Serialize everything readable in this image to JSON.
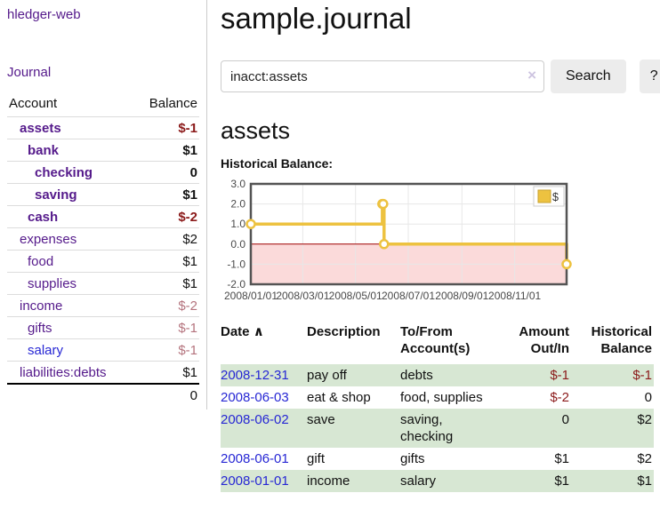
{
  "colors": {
    "link_purple": "#551a8b",
    "link_blue": "#2727d4",
    "neg_dark": "#8b1a1a",
    "neg_light": "#b4737d",
    "row_green": "#d7e7d3",
    "button_bg": "#ececec",
    "border_light": "#dcdcdc",
    "divider": "#cccccc",
    "input_border": "#cccccc",
    "clear_icon": "#cdc4e0"
  },
  "brand": {
    "title": "hledger-web"
  },
  "nav": {
    "journal": "Journal"
  },
  "sidebar": {
    "col_account": "Account",
    "col_balance": "Balance",
    "rows": [
      {
        "label": "assets",
        "balance": "$-1",
        "label_class": "d1 cur",
        "bal_class": "cur neg"
      },
      {
        "label": "bank",
        "balance": "$1",
        "label_class": "d2 cur",
        "bal_class": "cur"
      },
      {
        "label": "checking",
        "balance": "0",
        "label_class": "d3 cur",
        "bal_class": "cur"
      },
      {
        "label": "saving",
        "balance": "$1",
        "label_class": "d3 cur",
        "bal_class": "cur"
      },
      {
        "label": "cash",
        "balance": "$-2",
        "label_class": "d2 cur",
        "bal_class": "cur neg"
      },
      {
        "label": "expenses",
        "balance": "$2",
        "label_class": "d1",
        "bal_class": ""
      },
      {
        "label": "food",
        "balance": "$1",
        "label_class": "d2",
        "bal_class": ""
      },
      {
        "label": "supplies",
        "balance": "$1",
        "label_class": "d2",
        "bal_class": ""
      },
      {
        "label": "income",
        "balance": "$-2",
        "label_class": "d1",
        "bal_class": "negl"
      },
      {
        "label": "gifts",
        "balance": "$-1",
        "label_class": "d2",
        "bal_class": "negl"
      },
      {
        "label": "salary",
        "balance": "$-1",
        "label_class": "d2 alt",
        "bal_class": "negl"
      },
      {
        "label": "liabilities:debts",
        "balance": "$1",
        "label_class": "d1",
        "bal_class": ""
      }
    ],
    "total": "0"
  },
  "main": {
    "title": "sample.journal",
    "search": {
      "value": "inacct:assets",
      "clear_icon": "×",
      "search_label": "Search",
      "help_label": "?"
    },
    "account_title": "assets",
    "chart_title": "Historical Balance:"
  },
  "chart_data": {
    "type": "line",
    "step": true,
    "title": "Historical Balance",
    "legend": "$",
    "x_range": [
      "2008-01-01",
      "2008-12-31"
    ],
    "ylim": [
      -2,
      3
    ],
    "y_ticks": [
      "3.0",
      "2.0",
      "1.0",
      "0.0",
      "-1.0",
      "-2.0"
    ],
    "x_ticks": [
      "2008/01/01",
      "2008/03/01",
      "2008/05/01",
      "2008/07/01",
      "2008/09/01",
      "2008/11/01"
    ],
    "series": [
      {
        "name": "$",
        "color": "#edc240",
        "points": [
          [
            "2008-01-01",
            1
          ],
          [
            "2008-06-01",
            2
          ],
          [
            "2008-06-02",
            2
          ],
          [
            "2008-06-03",
            0
          ],
          [
            "2008-12-31",
            -1
          ]
        ]
      }
    ],
    "negative_fill": "#fbdada",
    "zero_line_color": "#a40000",
    "grid": true,
    "legend_position": "top-right"
  },
  "register": {
    "headers": {
      "date": "Date",
      "sort_icon": "∧",
      "description": "Description",
      "accounts": "To/From Account(s)",
      "amount": "Amount Out/In",
      "balance": "Historical Balance"
    },
    "rows": [
      {
        "date": "2008-12-31",
        "description": "pay off",
        "accounts": "debts",
        "amount": "$-1",
        "amount_class": "neg",
        "balance": "$-1",
        "balance_class": "neg"
      },
      {
        "date": "2008-06-03",
        "description": "eat & shop",
        "accounts": "food, supplies",
        "amount": "$-2",
        "amount_class": "neg",
        "balance": "0",
        "balance_class": ""
      },
      {
        "date": "2008-06-02",
        "description": "save",
        "accounts": "saving, checking",
        "amount": "0",
        "amount_class": "",
        "balance": "$2",
        "balance_class": ""
      },
      {
        "date": "2008-06-01",
        "description": "gift",
        "accounts": "gifts",
        "amount": "$1",
        "amount_class": "",
        "balance": "$2",
        "balance_class": ""
      },
      {
        "date": "2008-01-01",
        "description": "income",
        "accounts": "salary",
        "amount": "$1",
        "amount_class": "",
        "balance": "$1",
        "balance_class": ""
      }
    ]
  }
}
